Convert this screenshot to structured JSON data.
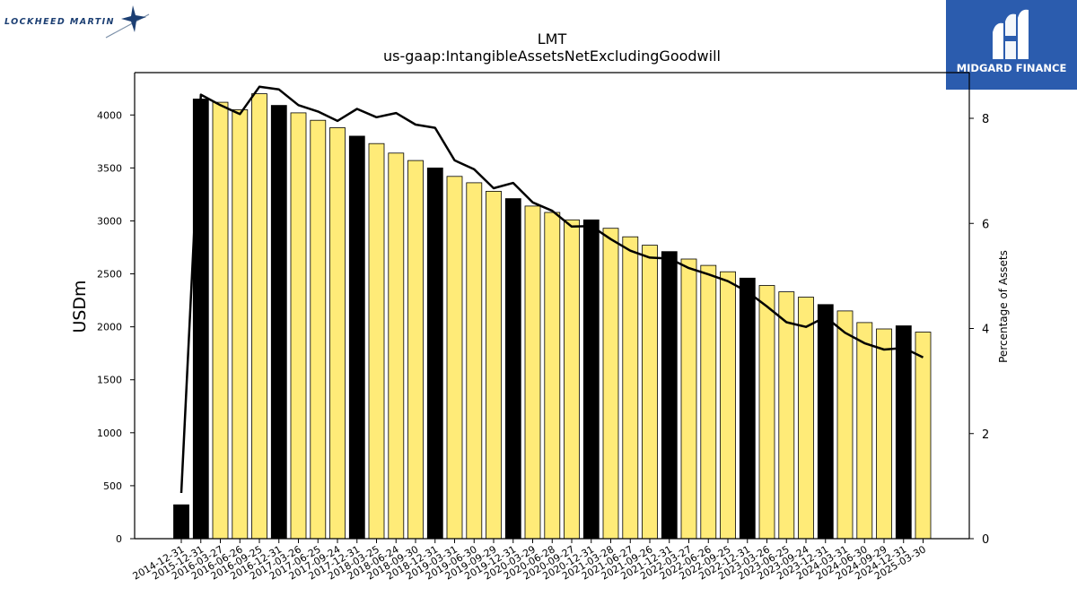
{
  "branding": {
    "left_logo_text": "LOCKHEED MARTIN",
    "right_logo_text": "MIDGARD FINANCE",
    "brand_blue": "#2b5cae",
    "lm_navy": "#1c3f73"
  },
  "chart_data": {
    "type": "bar",
    "title": "LMT",
    "subtitle": "us-gaap:IntangibleAssetsNetExcludingGoodwill",
    "ylabel": "USDm",
    "y2label": "Percentage of Assets",
    "ylim": [
      0,
      4400
    ],
    "y2lim": [
      0,
      8.87
    ],
    "yticks": [
      0,
      500,
      1000,
      1500,
      2000,
      2500,
      3000,
      3500,
      4000
    ],
    "y2ticks": [
      0,
      2,
      4,
      6,
      8
    ],
    "categories": [
      "2014-12-31",
      "2015-12-31",
      "2016-03-27",
      "2016-06-26",
      "2016-09-25",
      "2016-12-31",
      "2017-03-26",
      "2017-06-25",
      "2017-09-24",
      "2017-12-31",
      "2018-03-25",
      "2018-06-24",
      "2018-09-30",
      "2018-12-31",
      "2019-03-31",
      "2019-06-30",
      "2019-09-29",
      "2019-12-31",
      "2020-03-29",
      "2020-06-28",
      "2020-09-27",
      "2020-12-31",
      "2021-03-28",
      "2021-06-27",
      "2021-09-26",
      "2021-12-31",
      "2022-03-27",
      "2022-06-26",
      "2022-09-25",
      "2022-12-31",
      "2023-03-26",
      "2023-06-25",
      "2023-09-24",
      "2023-12-31",
      "2024-03-31",
      "2024-06-30",
      "2024-09-29",
      "2024-12-31",
      "2025-03-30"
    ],
    "series": [
      {
        "kind": "bar",
        "values": [
          320,
          4150,
          4120,
          4050,
          4200,
          4090,
          4020,
          3950,
          3880,
          3800,
          3730,
          3640,
          3570,
          3500,
          3420,
          3360,
          3280,
          3210,
          3140,
          3080,
          3010,
          3010,
          2930,
          2850,
          2770,
          2710,
          2640,
          2580,
          2520,
          2460,
          2390,
          2330,
          2280,
          2210,
          2150,
          2040,
          1980,
          2010,
          1950
        ]
      },
      {
        "kind": "line",
        "axis": "right",
        "values": [
          0.87,
          8.45,
          8.25,
          8.08,
          8.6,
          8.55,
          8.25,
          8.13,
          7.95,
          8.18,
          8.02,
          8.1,
          7.88,
          7.82,
          7.2,
          7.03,
          6.67,
          6.77,
          6.4,
          6.24,
          5.94,
          5.95,
          5.7,
          5.48,
          5.35,
          5.33,
          5.15,
          5.03,
          4.9,
          4.7,
          4.42,
          4.12,
          4.03,
          4.22,
          3.92,
          3.72,
          3.6,
          3.63,
          3.45
        ]
      }
    ],
    "annual_dates": [
      "2014-12-31",
      "2015-12-31",
      "2016-12-31",
      "2017-12-31",
      "2018-12-31",
      "2019-12-31",
      "2020-12-31",
      "2021-12-31",
      "2022-12-31",
      "2023-12-31",
      "2024-12-31"
    ],
    "colors": {
      "annual_bar": "#000000",
      "quarterly_bar": "#ffeb78",
      "line": "#000000"
    }
  }
}
